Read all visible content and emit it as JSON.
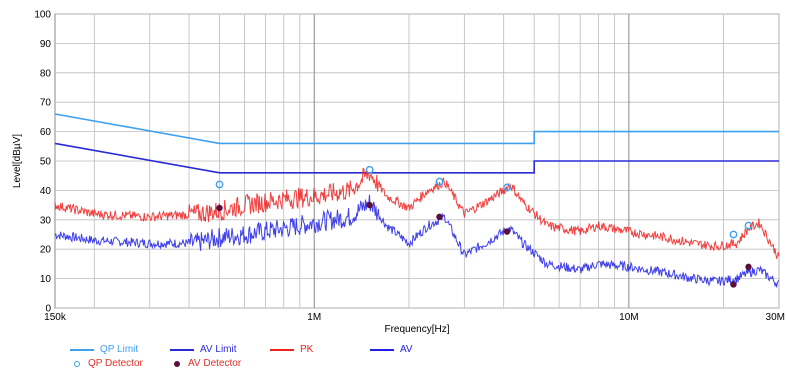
{
  "chart_data": {
    "type": "line",
    "xlabel": "Frequency[Hz]",
    "ylabel": "Level[dBµV]",
    "xscale": "log",
    "xlim": [
      150000,
      30000000
    ],
    "ylim": [
      0,
      100
    ],
    "yticks": [
      0,
      10,
      20,
      30,
      40,
      50,
      60,
      70,
      80,
      90,
      100
    ],
    "xtick_labels": [
      {
        "value": 150000,
        "label": "150k"
      },
      {
        "value": 1000000,
        "label": "1M"
      },
      {
        "value": 10000000,
        "label": "10M"
      },
      {
        "value": 30000000,
        "label": "30M"
      }
    ],
    "grid": true,
    "legend_position": "bottom",
    "series": [
      {
        "name": "QP Limit",
        "color": "#3fa0ee",
        "x": [
          150000,
          500000,
          500000,
          5000000,
          5000000,
          30000000
        ],
        "y": [
          66,
          56,
          56,
          56,
          60,
          60
        ]
      },
      {
        "name": "AV Limit",
        "color": "#2a2ad6",
        "x": [
          150000,
          500000,
          500000,
          5000000,
          5000000,
          30000000
        ],
        "y": [
          56,
          46,
          46,
          46,
          50,
          50
        ]
      },
      {
        "name": "PK",
        "color": "#ee2020",
        "x": [
          150000,
          200000,
          300000,
          420000,
          500000,
          600000,
          800000,
          1000000,
          1300000,
          1500000,
          1700000,
          2000000,
          2300000,
          2600000,
          3000000,
          3500000,
          4000000,
          4200000,
          4600000,
          5500000,
          7000000,
          8000000,
          10000000,
          13000000,
          16000000,
          19000000,
          22000000,
          24000000,
          26000000,
          30000000
        ],
        "y": [
          35,
          32,
          31,
          32,
          33,
          35,
          37,
          38,
          40,
          46,
          38,
          34,
          40,
          43,
          32,
          36,
          40,
          42,
          36,
          28,
          26,
          28,
          26,
          24,
          22,
          21,
          22,
          27,
          29,
          17
        ]
      },
      {
        "name": "AV",
        "color": "#2020e8",
        "x": [
          150000,
          200000,
          300000,
          420000,
          500000,
          600000,
          800000,
          1000000,
          1300000,
          1500000,
          1700000,
          2000000,
          2300000,
          2600000,
          3000000,
          3500000,
          4000000,
          4200000,
          4600000,
          5500000,
          7000000,
          8000000,
          10000000,
          13000000,
          16000000,
          19000000,
          22000000,
          24000000,
          26000000,
          30000000
        ],
        "y": [
          25,
          23,
          22,
          22,
          24,
          25,
          27,
          29,
          31,
          36,
          28,
          22,
          28,
          31,
          18,
          22,
          26,
          27,
          22,
          15,
          13,
          15,
          14,
          12,
          10,
          9,
          10,
          12,
          13,
          8
        ]
      },
      {
        "name": "QP Detector",
        "color": "#3fa0ee",
        "marker": "circle-open",
        "x": [
          500000,
          1500000,
          2500000,
          4100000,
          21500000,
          24000000
        ],
        "y": [
          42,
          47,
          43,
          41,
          25,
          28
        ]
      },
      {
        "name": "AV Detector",
        "color": "#5a0f3c",
        "marker": "circle-filled",
        "x": [
          500000,
          1500000,
          2500000,
          4100000,
          21500000,
          24000000
        ],
        "y": [
          34,
          35,
          31,
          26,
          8,
          14
        ]
      }
    ]
  }
}
